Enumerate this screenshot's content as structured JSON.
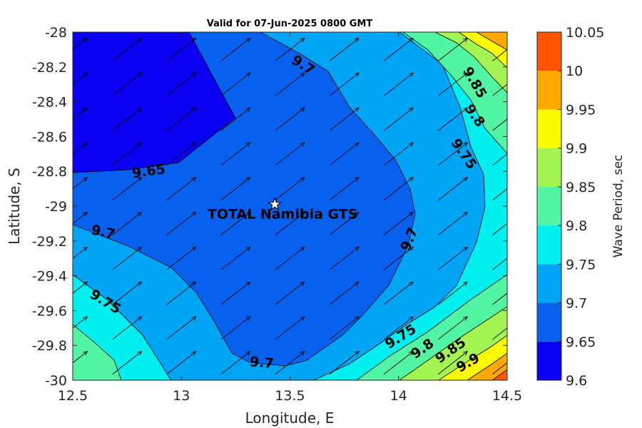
{
  "chart_data": {
    "type": "heatmap",
    "subtype": "filled-contour-with-vectors",
    "title": "Valid for 07-Jun-2025 0800 GMT",
    "xlabel": "Longitude, E",
    "ylabel": "Latitude, S",
    "xlim": [
      12.5,
      14.5
    ],
    "ylim": [
      -30,
      -28
    ],
    "xticks": [
      "12.5",
      "13",
      "13.5",
      "14",
      "14.5"
    ],
    "yticks": [
      "-28",
      "-28.2",
      "-28.4",
      "-28.6",
      "-28.8",
      "-29",
      "-29.2",
      "-29.4",
      "-29.6",
      "-29.8",
      "-30"
    ],
    "grid": false,
    "colorbar": {
      "label": "Wave Period, sec",
      "levels": [
        9.6,
        9.65,
        9.7,
        9.75,
        9.8,
        9.85,
        9.9,
        9.95,
        10,
        10.05
      ],
      "tick_labels": [
        "9.6",
        "9.65",
        "9.7",
        "9.75",
        "9.8",
        "9.85",
        "9.9",
        "9.95",
        "10",
        "10.05"
      ],
      "colors": [
        "#0a00f2",
        "#0861ee",
        "#00a5f5",
        "#00f0f0",
        "#52f5a3",
        "#a4f552",
        "#fafa00",
        "#ffa800",
        "#ff5500"
      ]
    },
    "contour_labels": [
      {
        "text": "9.7",
        "lon": 13.56,
        "lat": -28.19,
        "angle": 32
      },
      {
        "text": "9.65",
        "lon": 12.85,
        "lat": -28.8,
        "angle": -8
      },
      {
        "text": "9.7",
        "lon": 12.64,
        "lat": -29.15,
        "angle": 12
      },
      {
        "text": "9.75",
        "lon": 12.65,
        "lat": -29.55,
        "angle": 32
      },
      {
        "text": "9.7",
        "lon": 14.05,
        "lat": -29.19,
        "angle": -68
      },
      {
        "text": "9.7",
        "lon": 13.37,
        "lat": -29.9,
        "angle": 5
      },
      {
        "text": "9.75",
        "lon": 14.01,
        "lat": -29.75,
        "angle": -32
      },
      {
        "text": "9.8",
        "lon": 14.11,
        "lat": -29.82,
        "angle": -35
      },
      {
        "text": "9.85",
        "lon": 14.24,
        "lat": -29.83,
        "angle": -35
      },
      {
        "text": "9.9",
        "lon": 14.32,
        "lat": -29.9,
        "angle": -30
      },
      {
        "text": "9.85",
        "lon": 14.35,
        "lat": -28.29,
        "angle": 60
      },
      {
        "text": "9.8",
        "lon": 14.35,
        "lat": -28.48,
        "angle": 55
      },
      {
        "text": "9.75",
        "lon": 14.3,
        "lat": -28.7,
        "angle": 55
      }
    ],
    "vector_direction_deg": 38,
    "vector_grid": {
      "lon_start": 12.5,
      "lon_step": 0.25,
      "lon_count": 9,
      "lat_start": -28.1,
      "lat_step": -0.2,
      "lat_count": 10
    },
    "site": {
      "label": "TOTAL Namibia GTS",
      "lon": 13.43,
      "lat": -28.99
    }
  }
}
